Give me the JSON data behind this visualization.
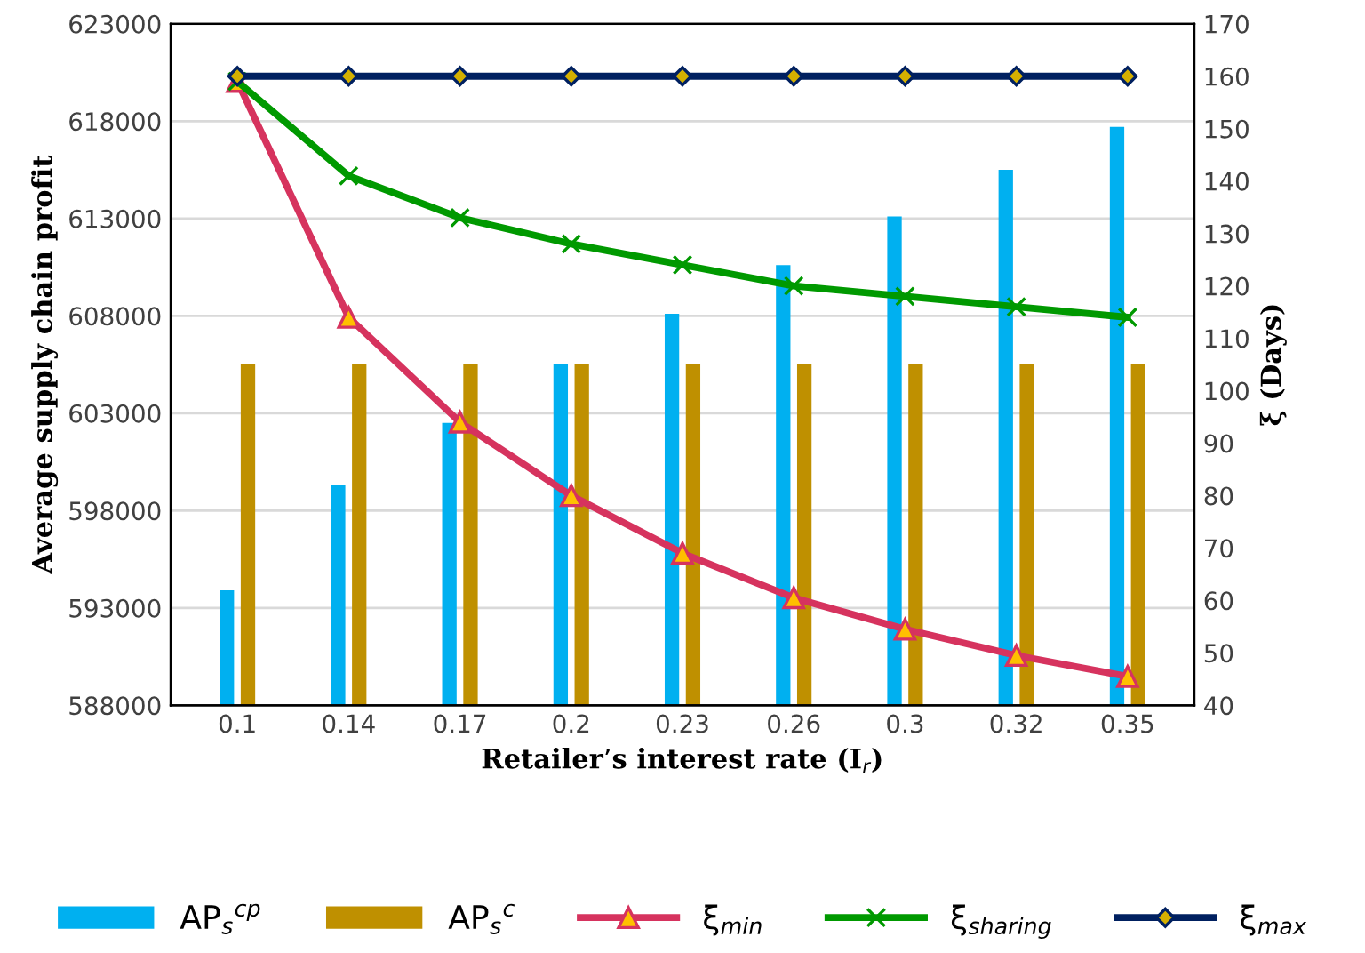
{
  "chart_data": {
    "type": "bar",
    "xlabel": "Retailer’s interest rate (I$_{r}$)",
    "ylabel": "Average supply chain profit",
    "y2label": "ξ (Days)",
    "categories": [
      "0.1",
      "0.14",
      "0.17",
      "0.2",
      "0.23",
      "0.26",
      "0.3",
      "0.32",
      "0.35"
    ],
    "series": [
      {
        "name": "AP$_{s}$$^{cp}$",
        "color": "#00b0f0",
        "values": [
          593900,
          599300,
          602500,
          605500,
          608100,
          610600,
          613100,
          615500,
          617700
        ]
      },
      {
        "name": "AP$_{s}$$^{c}$",
        "color": "#bf9000",
        "values": [
          605500,
          605500,
          605500,
          605500,
          605500,
          605500,
          605500,
          605500,
          605500
        ]
      },
      {
        "name": "ξ$_{min}$",
        "type": "line",
        "axis": "y2",
        "marker": "triangle",
        "color": "#d6335e",
        "values": [
          159,
          114,
          94,
          80,
          69,
          60.5,
          54.5,
          49.5,
          45.5
        ]
      },
      {
        "name": "ξ$_{sharing}$",
        "type": "line",
        "axis": "y2",
        "marker": "cross",
        "color": "#009900",
        "values": [
          159,
          141,
          133,
          128,
          124,
          120,
          118,
          116,
          114
        ]
      },
      {
        "name": "ξ$_{max}$",
        "type": "line",
        "axis": "y2",
        "marker": "diamond",
        "color": "#002060",
        "values": [
          160,
          160,
          160,
          160,
          160,
          160,
          160,
          160,
          160
        ]
      }
    ],
    "ylim": [
      588000,
      623000
    ],
    "yticks": [
      588000,
      593000,
      598000,
      603000,
      608000,
      613000,
      618000,
      623000
    ],
    "y2lim": [
      40,
      170
    ],
    "y2ticks": [
      40,
      50,
      60,
      70,
      80,
      90,
      100,
      110,
      120,
      130,
      140,
      150,
      160,
      170
    ],
    "grid": "y",
    "legend": "bottom"
  }
}
